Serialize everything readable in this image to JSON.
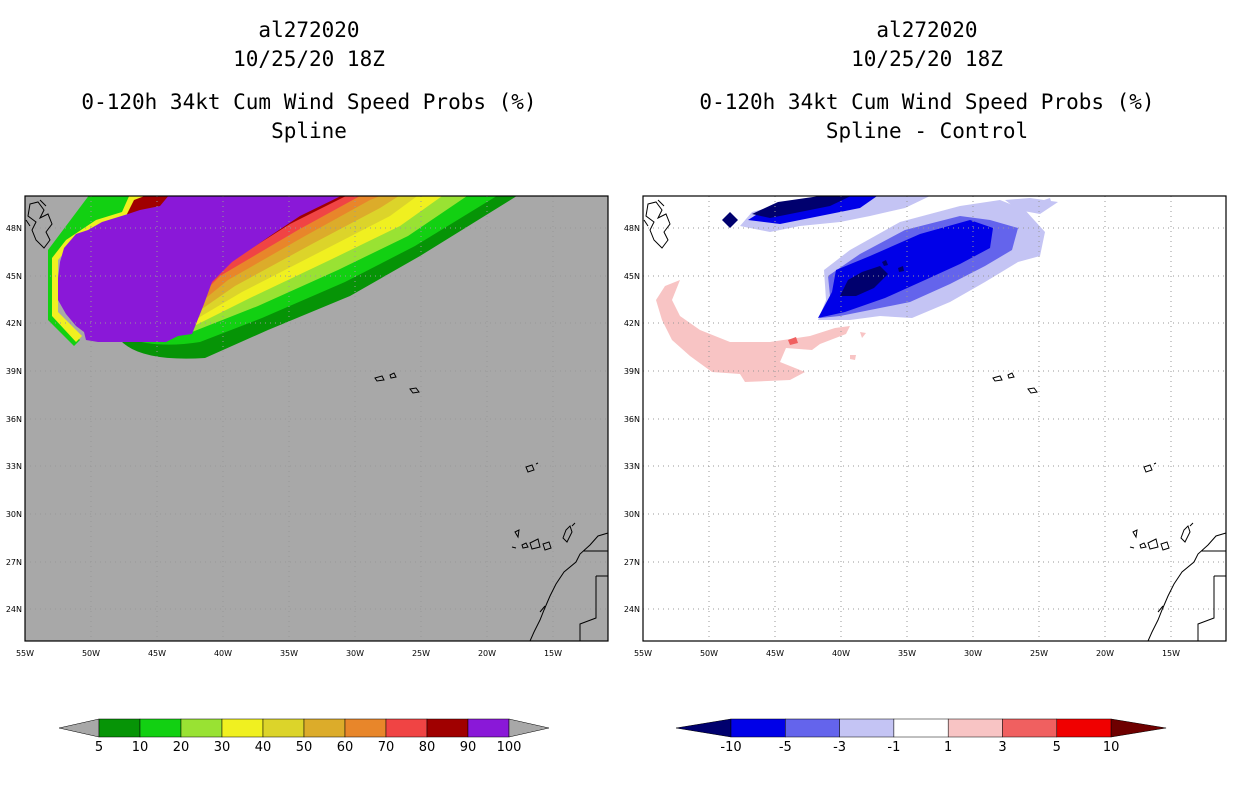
{
  "left_panel": {
    "storm_id": "al272020",
    "datetime": "10/25/20 18Z",
    "product": "0-120h 34kt Cum Wind Speed Probs (%)",
    "variant": "Spline",
    "colorbar": {
      "labels": [
        "5",
        "10",
        "20",
        "30",
        "40",
        "50",
        "60",
        "70",
        "80",
        "90",
        "100"
      ],
      "colors": [
        "#069406",
        "#12d012",
        "#99e233",
        "#f0f020",
        "#dcd42a",
        "#dcac2a",
        "#e8862a",
        "#f04444",
        "#a00000",
        "#8a18d8"
      ],
      "under_color": "#a8a8a8",
      "over_color": "#a8a8a8"
    }
  },
  "right_panel": {
    "storm_id": "al272020",
    "datetime": "10/25/20 18Z",
    "product": "0-120h 34kt Cum Wind Speed Probs (%)",
    "variant": "Spline - Control",
    "colorbar": {
      "labels": [
        "-10",
        "-5",
        "-3",
        "-1",
        "1",
        "3",
        "5",
        "10"
      ],
      "colors": [
        "#0000e8",
        "#6464ec",
        "#c4c4f4",
        "#ffffff",
        "#f8c4c4",
        "#f06060",
        "#f00000"
      ],
      "under_color": "#00006e",
      "over_color": "#6e0000"
    }
  },
  "axes": {
    "lon_labels": [
      "55W",
      "50W",
      "45W",
      "40W",
      "35W",
      "30W",
      "25W",
      "20W",
      "15W"
    ],
    "lat_labels": [
      "48N",
      "45N",
      "42N",
      "39N",
      "36N",
      "33N",
      "30N",
      "27N",
      "24N"
    ]
  },
  "colors": {
    "land_mask": "#a8a8a8",
    "grid": "#999999"
  }
}
